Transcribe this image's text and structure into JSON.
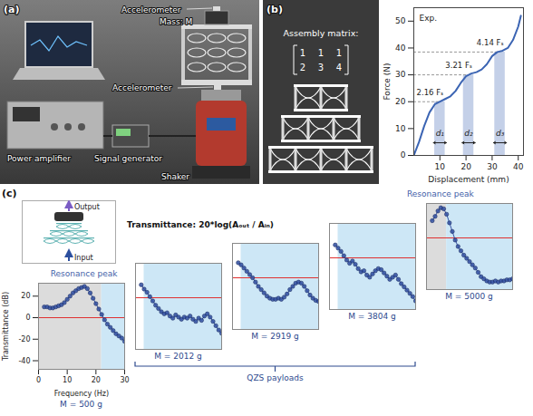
{
  "panel_a": {
    "letter": "(a)",
    "labels": {
      "accelerometer_top": "Accelerometer",
      "mass": "Mass: M",
      "accelerometer_bottom": "Accelerometer",
      "power_amplifier": "Power amplifier",
      "signal_generator": "Signal generator",
      "shaker": "Shaker"
    }
  },
  "panel_b": {
    "letter": "(b)",
    "matrix_title": "Assembly matrix:",
    "matrix": [
      [
        1,
        1,
        1
      ],
      [
        2,
        3,
        4
      ]
    ]
  },
  "panel_c": {
    "letter": "(c)",
    "formula": "Transmittance: 20*log(Aₒᵤₜ / Aᵢₙ)",
    "inset": {
      "output": "Output",
      "input": "Input"
    },
    "group_label": "QZS payloads"
  },
  "chart_data": [
    {
      "type": "line",
      "annotation": "Exp.",
      "x_label": "Displacement (mm)",
      "y_label": "Force (N)",
      "color": "#3b64b3",
      "x": [
        0,
        2,
        4,
        6,
        8,
        10,
        12,
        14,
        16,
        18,
        20,
        22,
        24,
        26,
        28,
        30,
        32,
        34,
        36,
        38,
        40,
        41
      ],
      "values": [
        0,
        5,
        11,
        16,
        19,
        20,
        21,
        22,
        24,
        27,
        29.5,
        30.5,
        31,
        32,
        34,
        37,
        38.5,
        39,
        40,
        43,
        48,
        52
      ],
      "xlim": [
        0,
        42
      ],
      "ylim": [
        0,
        55
      ],
      "xticks": [
        10,
        20,
        30,
        40
      ],
      "yticks": [
        0,
        10,
        20,
        30,
        40,
        50
      ],
      "plateaus": [
        {
          "label": "2.16 Fₛ",
          "force": 20,
          "d_label": "d₁",
          "displacement": 10
        },
        {
          "label": "3.21 Fₛ",
          "force": 30,
          "d_label": "d₂",
          "displacement": 21
        },
        {
          "label": "4.14 Fₛ",
          "force": 38.5,
          "d_label": "d₃",
          "displacement": 33
        }
      ]
    },
    {
      "type": "line",
      "marker": "circle",
      "title": "M = 500 g",
      "annotation": "Resonance peak",
      "x_label": "Frequency (Hz)",
      "y_label": "Transmittance (dB)",
      "color": "#3552a3",
      "x": [
        2,
        3,
        4,
        5,
        6,
        7,
        8,
        9,
        10,
        11,
        12,
        13,
        14,
        15,
        16,
        17,
        18,
        19,
        20,
        21,
        22,
        23,
        24,
        25,
        26,
        27,
        28,
        29,
        30
      ],
      "values": [
        10,
        10,
        9,
        9,
        10,
        11,
        12,
        14,
        17,
        20,
        23,
        25,
        27,
        28,
        29,
        27,
        23,
        18,
        13,
        8,
        3,
        -2,
        -6,
        -9,
        -12,
        -15,
        -17,
        -19,
        -22
      ],
      "xlim": [
        0,
        30
      ],
      "ylim": [
        -48,
        32
      ],
      "xticks": [
        0,
        10,
        20,
        30
      ],
      "yticks": [
        -40,
        -20,
        0,
        20
      ],
      "reference_line": {
        "value": 0,
        "color": "#e03030"
      },
      "shaded_regions": [
        {
          "from": 0,
          "to": 22,
          "color": "#dcdcdc"
        },
        {
          "from": 22,
          "to": 30,
          "color": "#cde7f6"
        }
      ]
    },
    {
      "type": "line",
      "marker": "circle",
      "title": "M = 2012 g",
      "tick_labels": false,
      "color": "#3552a3",
      "x": [
        2,
        3,
        4,
        5,
        6,
        7,
        8,
        9,
        10,
        11,
        12,
        13,
        14,
        15,
        16,
        17,
        18,
        19,
        20,
        21,
        22,
        23,
        24,
        25,
        26,
        27,
        28,
        29,
        30
      ],
      "values": [
        12,
        8,
        5,
        1,
        -3,
        -7,
        -10,
        -13,
        -15,
        -14,
        -17,
        -19,
        -16,
        -18,
        -20,
        -18,
        -19,
        -17,
        -20,
        -22,
        -19,
        -21,
        -17,
        -15,
        -18,
        -22,
        -26,
        -30,
        -33
      ],
      "xlim": [
        0,
        30
      ],
      "ylim": [
        -48,
        32
      ],
      "reference_line": {
        "value": 0,
        "color": "#e03030"
      },
      "shaded_regions": [
        {
          "from": 3,
          "to": 30,
          "color": "#cde7f6"
        }
      ]
    },
    {
      "type": "line",
      "marker": "circle",
      "title": "M = 2919 g",
      "tick_labels": false,
      "color": "#3552a3",
      "x": [
        2,
        3,
        4,
        5,
        6,
        7,
        8,
        9,
        10,
        11,
        12,
        13,
        14,
        15,
        16,
        17,
        18,
        19,
        20,
        21,
        22,
        23,
        24,
        25,
        26,
        27,
        28,
        29,
        30
      ],
      "values": [
        14,
        12,
        9,
        6,
        3,
        0,
        -4,
        -8,
        -11,
        -14,
        -17,
        -19,
        -20,
        -20,
        -19,
        -20,
        -18,
        -15,
        -11,
        -8,
        -5,
        -4,
        -5,
        -8,
        -12,
        -16,
        -19,
        -21,
        -22
      ],
      "xlim": [
        0,
        30
      ],
      "ylim": [
        -48,
        32
      ],
      "reference_line": {
        "value": 0,
        "color": "#e03030"
      },
      "shaded_regions": [
        {
          "from": 3,
          "to": 30,
          "color": "#cde7f6"
        }
      ]
    },
    {
      "type": "line",
      "marker": "circle",
      "title": "M = 3804 g",
      "tick_labels": false,
      "color": "#3552a3",
      "x": [
        2,
        3,
        4,
        5,
        6,
        7,
        8,
        9,
        10,
        11,
        12,
        13,
        14,
        15,
        16,
        17,
        18,
        19,
        20,
        21,
        22,
        23,
        24,
        25,
        26,
        27,
        28,
        29,
        30
      ],
      "values": [
        12,
        9,
        6,
        2,
        -2,
        -5,
        -3,
        -6,
        -10,
        -13,
        -12,
        -16,
        -18,
        -15,
        -12,
        -10,
        -11,
        -14,
        -17,
        -20,
        -18,
        -16,
        -20,
        -24,
        -27,
        -30,
        -33,
        -36,
        -40
      ],
      "xlim": [
        0,
        30
      ],
      "ylim": [
        -48,
        32
      ],
      "reference_line": {
        "value": 0,
        "color": "#e03030"
      },
      "shaded_regions": [
        {
          "from": 3,
          "to": 30,
          "color": "#cde7f6"
        }
      ]
    },
    {
      "type": "line",
      "marker": "circle",
      "title": "M = 5000 g",
      "annotation": "Resonance peak",
      "tick_labels": false,
      "color": "#3552a3",
      "x": [
        2,
        3,
        4,
        5,
        6,
        7,
        8,
        9,
        10,
        11,
        12,
        13,
        14,
        15,
        16,
        17,
        18,
        19,
        20,
        21,
        22,
        23,
        24,
        25,
        26,
        27,
        28,
        29,
        30
      ],
      "values": [
        16,
        20,
        25,
        28,
        27,
        22,
        14,
        6,
        -2,
        -8,
        -12,
        -16,
        -19,
        -22,
        -25,
        -28,
        -32,
        -36,
        -38,
        -40,
        -41,
        -41,
        -40,
        -41,
        -40,
        -40,
        -39,
        -39,
        -38
      ],
      "xlim": [
        0,
        30
      ],
      "ylim": [
        -48,
        32
      ],
      "reference_line": {
        "value": 0,
        "color": "#e03030"
      },
      "shaded_regions": [
        {
          "from": 0,
          "to": 7,
          "color": "#dcdcdc"
        },
        {
          "from": 7,
          "to": 30,
          "color": "#cde7f6"
        }
      ]
    }
  ]
}
